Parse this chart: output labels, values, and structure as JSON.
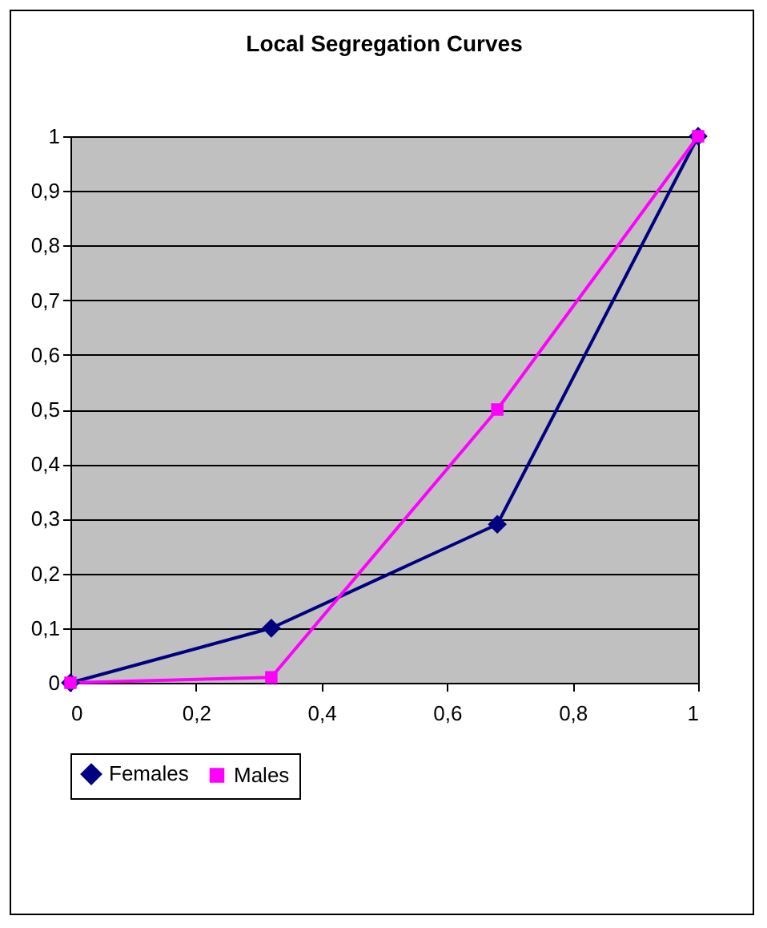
{
  "chart_data": {
    "type": "line",
    "title": "Local Segregation Curves",
    "x": [
      0,
      0.32,
      0.68,
      1
    ],
    "series": [
      {
        "name": "Females",
        "color": "#000080",
        "marker": "diamond",
        "values": [
          0,
          0.1,
          0.29,
          1
        ]
      },
      {
        "name": "Males",
        "color": "#ff00ff",
        "marker": "square",
        "values": [
          0,
          0.01,
          0.5,
          1
        ]
      }
    ],
    "xlim": [
      0,
      1
    ],
    "xticks": [
      0,
      {
        "value": 0.2,
        "label": "0,2"
      },
      {
        "value": 0.4,
        "label": "0,4"
      },
      {
        "value": 0.6,
        "label": "0,6"
      },
      {
        "value": 0.8,
        "label": "0,8"
      },
      1
    ],
    "ylim": [
      0,
      1
    ],
    "yticks": [
      0,
      {
        "value": 0.1,
        "label": "0,1"
      },
      {
        "value": 0.2,
        "label": "0,2"
      },
      {
        "value": 0.3,
        "label": "0,3"
      },
      {
        "value": 0.4,
        "label": "0,4"
      },
      {
        "value": 0.5,
        "label": "0,5"
      },
      {
        "value": 0.6,
        "label": "0,6"
      },
      {
        "value": 0.7,
        "label": "0,7"
      },
      {
        "value": 0.8,
        "label": "0,8"
      },
      {
        "value": 0.9,
        "label": "0,9"
      },
      {
        "value": 1,
        "label": "1"
      }
    ],
    "grid": "y",
    "legend": "bottom"
  }
}
